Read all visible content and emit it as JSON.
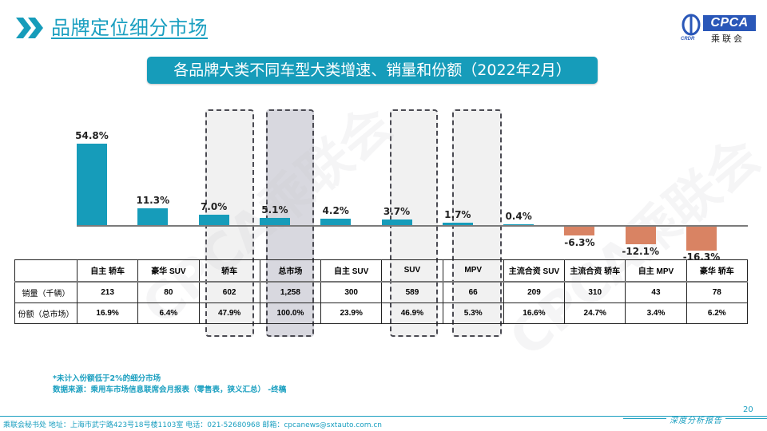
{
  "header": {
    "title": "品牌定位细分市场",
    "accent_color": "#1a9fc0"
  },
  "logo": {
    "mark_text": "CRDR",
    "brand": "CPCA",
    "sub": "乘联会"
  },
  "banner": {
    "title": "各品牌大类不同车型大类增速、销量和份额（2022年2月）"
  },
  "watermark": {
    "text": "CPCA乘联会"
  },
  "chart_data": {
    "type": "bar",
    "title": "各品牌大类不同车型大类增速、销量和份额（2022年2月）",
    "categories": [
      "自主 轿车",
      "豪华 SUV",
      "轿车",
      "总市场",
      "自主 SUV",
      "SUV",
      "MPV",
      "主流合资 SUV",
      "主流合资 轿车",
      "自主 MPV",
      "豪华 轿车"
    ],
    "series": [
      {
        "name": "增速",
        "values": [
          54.8,
          11.3,
          7.0,
          5.1,
          4.2,
          3.7,
          1.7,
          0.4,
          -6.3,
          -12.1,
          -16.3
        ]
      }
    ],
    "labels": [
      "54.8%",
      "11.3%",
      "7.0%",
      "5.1%",
      "4.2%",
      "3.7%",
      "1.7%",
      "0.4%",
      "-6.3%",
      "-12.1%",
      "-16.3%"
    ],
    "positive_color": "#169cba",
    "negative_color": "#d98363",
    "highlighted_categories": [
      "轿车",
      "总市场",
      "SUV",
      "MPV"
    ],
    "xlabel": "",
    "ylabel": "",
    "grid": false,
    "legend": "none"
  },
  "table": {
    "header_blank": "",
    "columns": [
      "自主 轿车",
      "豪华 SUV",
      "轿车",
      "总市场",
      "自主 SUV",
      "SUV",
      "MPV",
      "主流合资 SUV",
      "主流合资 轿车",
      "自主 MPV",
      "豪华 轿车"
    ],
    "rows": [
      {
        "label": "销量（千辆）",
        "values": [
          "213",
          "80",
          "602",
          "1,258",
          "300",
          "589",
          "66",
          "209",
          "310",
          "43",
          "78"
        ]
      },
      {
        "label": "份额（总市场）",
        "values": [
          "16.9%",
          "6.4%",
          "47.9%",
          "100.0%",
          "23.9%",
          "46.9%",
          "5.3%",
          "16.6%",
          "24.7%",
          "3.4%",
          "6.2%"
        ]
      }
    ]
  },
  "notes": {
    "line1": "*未计入份额低于2%的细分市场",
    "line2": "数据来源：乘用车市场信息联席会月报表（零售表，狭义汇总） -终稿"
  },
  "footer": {
    "contact": "乘联会秘书处   地址：上海市武宁路423号18号楼1103室  电话：021-52680968   邮箱：cpcanews@sxtauto.com.cn",
    "report_tag": "深度分析报告",
    "page_number": "20"
  }
}
